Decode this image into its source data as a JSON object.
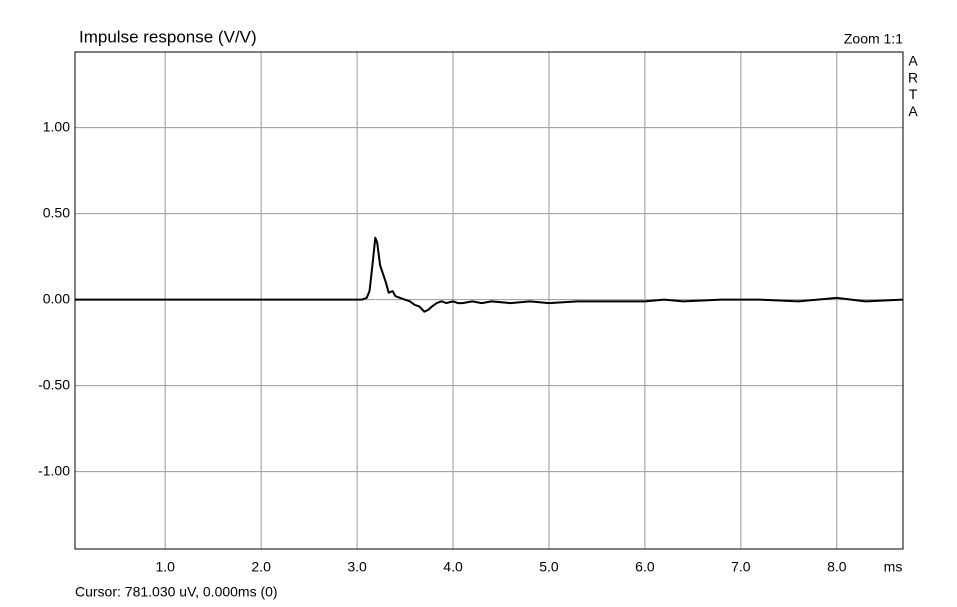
{
  "chart_data": {
    "type": "line",
    "title": "Impulse response (V/V)",
    "zoom_label": "Zoom 1:1",
    "watermark": [
      "A",
      "R",
      "T",
      "A"
    ],
    "x_label": "ms",
    "cursor_readout": "Cursor: 781.030 uV, 0.000ms (0)",
    "color": "#000000",
    "grid": true,
    "xlim": [
      0.06,
      8.69
    ],
    "ylim": [
      -1.45,
      1.44
    ],
    "xticks": [
      {
        "value": 1,
        "label": "1.0"
      },
      {
        "value": 2,
        "label": "2.0"
      },
      {
        "value": 3,
        "label": "3.0"
      },
      {
        "value": 4,
        "label": "4.0"
      },
      {
        "value": 5,
        "label": "5.0"
      },
      {
        "value": 6,
        "label": "6.0"
      },
      {
        "value": 7,
        "label": "7.0"
      },
      {
        "value": 8,
        "label": "8.0"
      }
    ],
    "yticks": [
      {
        "value": -1,
        "label": "-1.00"
      },
      {
        "value": -0.5,
        "label": "-0.50"
      },
      {
        "value": 0,
        "label": "0.00"
      },
      {
        "value": 0.5,
        "label": "0.50"
      },
      {
        "value": 1,
        "label": "1.00"
      }
    ],
    "x": [
      0.06,
      3.05,
      3.1,
      3.13,
      3.16,
      3.19,
      3.21,
      3.24,
      3.27,
      3.3,
      3.33,
      3.37,
      3.4,
      3.45,
      3.5,
      3.55,
      3.6,
      3.65,
      3.7,
      3.74,
      3.78,
      3.83,
      3.88,
      3.93,
      4.0,
      4.05,
      4.1,
      4.2,
      4.3,
      4.4,
      4.6,
      4.8,
      5.0,
      5.3,
      5.6,
      6.0,
      6.2,
      6.4,
      6.8,
      7.2,
      7.6,
      8.0,
      8.3,
      8.69
    ],
    "values": [
      0,
      0,
      0.01,
      0.05,
      0.2,
      0.36,
      0.33,
      0.2,
      0.15,
      0.1,
      0.04,
      0.05,
      0.02,
      0.01,
      0,
      -0.01,
      -0.03,
      -0.04,
      -0.07,
      -0.06,
      -0.04,
      -0.02,
      -0.01,
      -0.02,
      -0.01,
      -0.02,
      -0.02,
      -0.01,
      -0.02,
      -0.01,
      -0.02,
      -0.01,
      -0.02,
      -0.01,
      -0.01,
      -0.01,
      0,
      -0.01,
      0,
      0,
      -0.01,
      0.01,
      -0.01,
      0
    ]
  }
}
